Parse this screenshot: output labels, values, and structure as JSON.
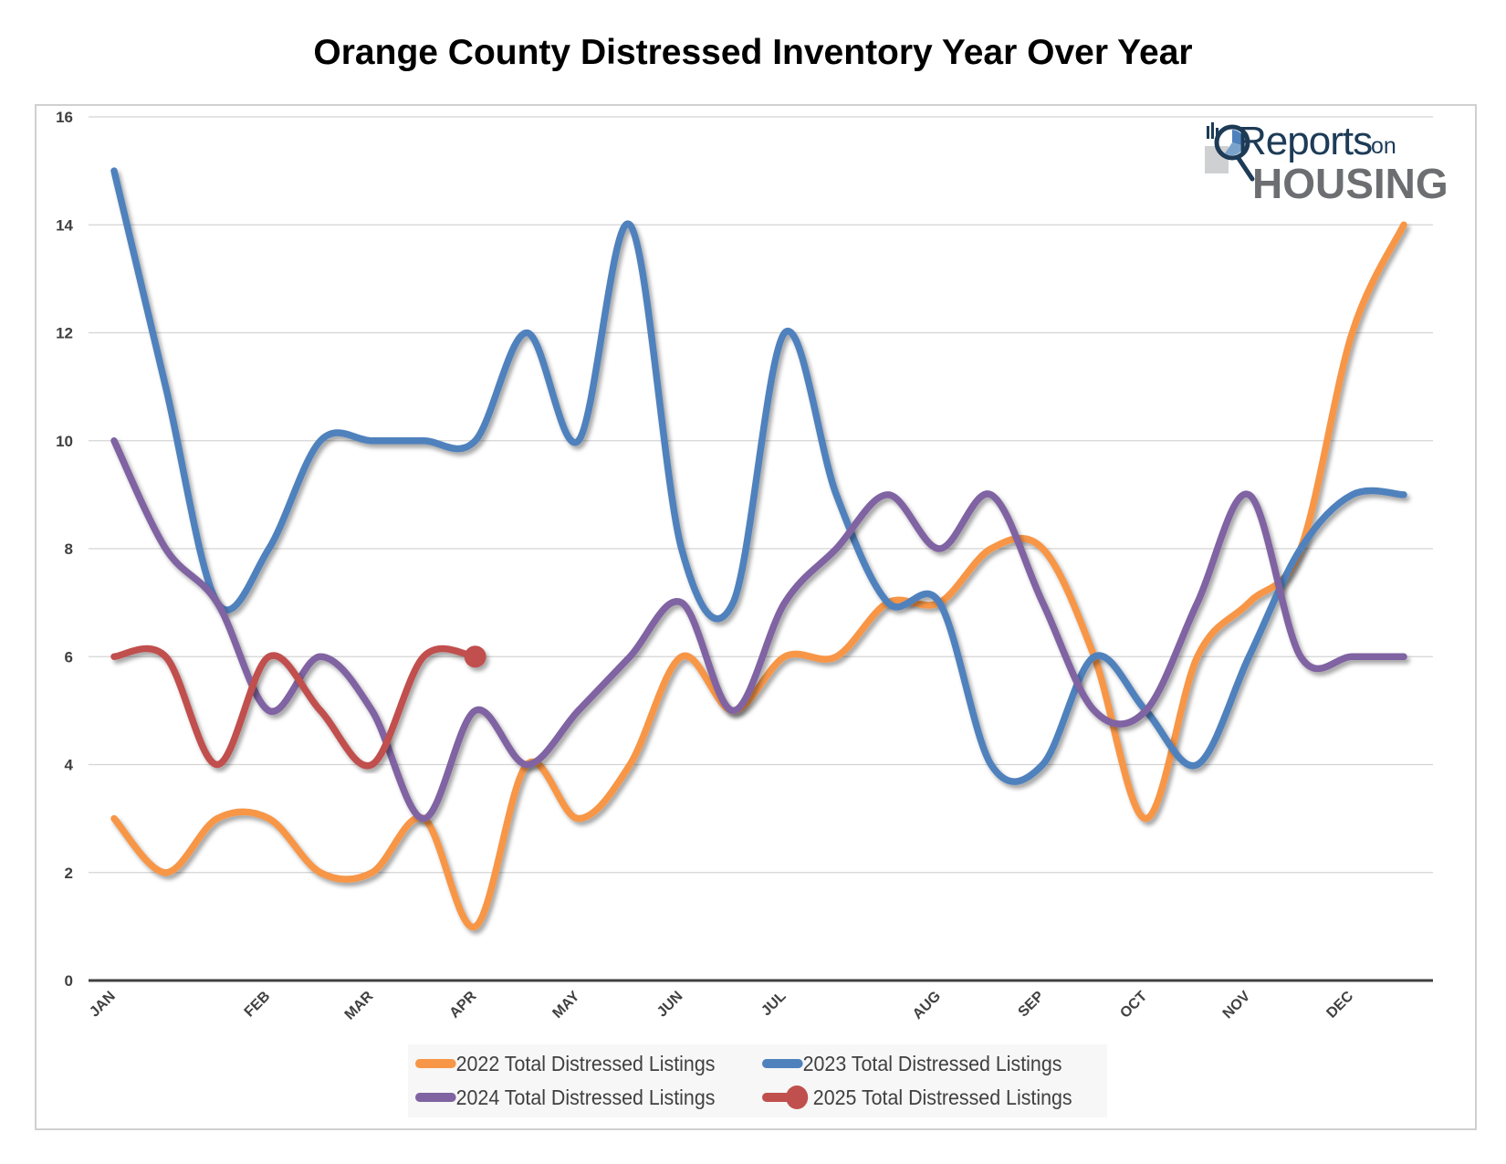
{
  "chart_data": {
    "type": "line",
    "title": "Orange County Distressed Inventory Year Over Year",
    "xlabel": "",
    "ylabel": "",
    "ylim": [
      0,
      16
    ],
    "yticks": [
      "0",
      "2",
      "4",
      "6",
      "8",
      "10",
      "12",
      "14",
      "16"
    ],
    "ytick_values": [
      0,
      2,
      4,
      6,
      8,
      10,
      12,
      14,
      16
    ],
    "grid": true,
    "smoothed": true,
    "point_count": 26,
    "month_labels": [
      {
        "label": "JAN",
        "index": 0
      },
      {
        "label": "FEB",
        "index": 3
      },
      {
        "label": "MAR",
        "index": 5
      },
      {
        "label": "APR",
        "index": 7
      },
      {
        "label": "MAY",
        "index": 9
      },
      {
        "label": "JUN",
        "index": 11
      },
      {
        "label": "JUL",
        "index": 13
      },
      {
        "label": "AUG",
        "index": 16
      },
      {
        "label": "SEP",
        "index": 18
      },
      {
        "label": "OCT",
        "index": 20
      },
      {
        "label": "NOV",
        "index": 22
      },
      {
        "label": "DEC",
        "index": 24
      }
    ],
    "legend_position": "bottom",
    "series": [
      {
        "name": "2022 Total Distressed Listings",
        "color": "#f79646",
        "marker": false,
        "values": [
          3,
          2,
          3,
          3,
          2,
          2,
          3,
          1,
          4,
          3,
          4,
          6,
          5,
          6,
          6,
          7,
          7,
          8,
          8,
          6,
          3,
          6,
          7,
          8,
          12,
          14
        ]
      },
      {
        "name": "2023 Total Distressed Listings",
        "color": "#4f81bd",
        "marker": false,
        "values": [
          15,
          11,
          7,
          8,
          10,
          10,
          10,
          10,
          12,
          10,
          14,
          8,
          7,
          12,
          9,
          7,
          7,
          4,
          4,
          6,
          5,
          4,
          6,
          8,
          9,
          9
        ]
      },
      {
        "name": "2024 Total Distressed Listings",
        "color": "#8064a2",
        "marker": false,
        "values": [
          10,
          8,
          7,
          5,
          6,
          5,
          3,
          5,
          4,
          5,
          6,
          7,
          5,
          7,
          8,
          9,
          8,
          9,
          7,
          5,
          5,
          7,
          9,
          6,
          6,
          6
        ]
      },
      {
        "name": "2025 Total Distressed Listings",
        "color": "#c0504d",
        "marker": "last-point",
        "values": [
          6,
          6,
          4,
          6,
          5,
          4,
          6,
          6
        ]
      }
    ]
  },
  "logo": {
    "reports": "Reports",
    "on": "on",
    "housing": "HOUSING"
  }
}
